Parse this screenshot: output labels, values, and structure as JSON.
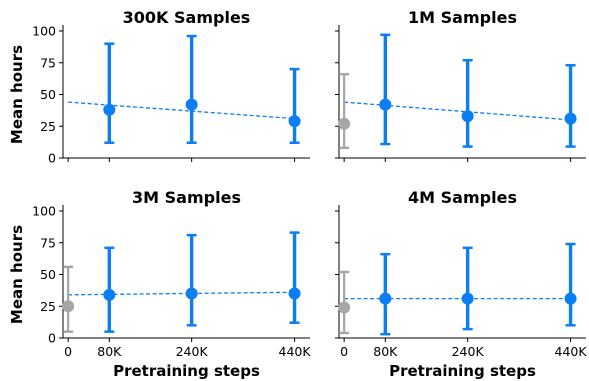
{
  "colors": {
    "main": "#0a7ef2",
    "baseline": "#a6a6a6"
  },
  "shared": {
    "ylabel": "Mean hours",
    "xlabel": "Pretraining steps",
    "x_ticks": [
      {
        "value": 0,
        "label": "0"
      },
      {
        "value": 80000,
        "label": "80K"
      },
      {
        "value": 240000,
        "label": "240K"
      },
      {
        "value": 440000,
        "label": "440K"
      }
    ],
    "y_ticks": [
      0,
      25,
      50,
      75,
      100
    ]
  },
  "chart_data": [
    {
      "type": "scatter",
      "title": "300K Samples",
      "xlim": [
        -10000,
        470000
      ],
      "ylim": [
        0,
        100
      ],
      "points": [
        {
          "x": 80000,
          "y": 38,
          "ylo": 12,
          "yhi": 90,
          "group": "main"
        },
        {
          "x": 240000,
          "y": 42,
          "ylo": 12,
          "yhi": 96,
          "group": "main"
        },
        {
          "x": 440000,
          "y": 29,
          "ylo": 12,
          "yhi": 70,
          "group": "main"
        }
      ],
      "trend": {
        "x0": 0,
        "y0": 44,
        "x1": 440000,
        "y1": 31
      }
    },
    {
      "type": "scatter",
      "title": "1M Samples",
      "xlim": [
        -10000,
        470000
      ],
      "ylim": [
        0,
        100
      ],
      "points": [
        {
          "x": 0,
          "y": 27,
          "ylo": 8,
          "yhi": 66,
          "group": "baseline"
        },
        {
          "x": 80000,
          "y": 42,
          "ylo": 11,
          "yhi": 97,
          "group": "main"
        },
        {
          "x": 240000,
          "y": 33,
          "ylo": 9,
          "yhi": 77,
          "group": "main"
        },
        {
          "x": 440000,
          "y": 31,
          "ylo": 9,
          "yhi": 73,
          "group": "main"
        }
      ],
      "trend": {
        "x0": 0,
        "y0": 44,
        "x1": 440000,
        "y1": 30
      }
    },
    {
      "type": "scatter",
      "title": "3M Samples",
      "xlim": [
        -10000,
        470000
      ],
      "ylim": [
        0,
        100
      ],
      "points": [
        {
          "x": 0,
          "y": 25,
          "ylo": 5,
          "yhi": 56,
          "group": "baseline"
        },
        {
          "x": 80000,
          "y": 34,
          "ylo": 5,
          "yhi": 71,
          "group": "main"
        },
        {
          "x": 240000,
          "y": 35,
          "ylo": 10,
          "yhi": 81,
          "group": "main"
        },
        {
          "x": 440000,
          "y": 35,
          "ylo": 12,
          "yhi": 83,
          "group": "main"
        }
      ],
      "trend": {
        "x0": 0,
        "y0": 34,
        "x1": 440000,
        "y1": 36
      }
    },
    {
      "type": "scatter",
      "title": "4M Samples",
      "xlim": [
        -10000,
        470000
      ],
      "ylim": [
        0,
        100
      ],
      "points": [
        {
          "x": 0,
          "y": 24,
          "ylo": 4,
          "yhi": 52,
          "group": "baseline"
        },
        {
          "x": 80000,
          "y": 31,
          "ylo": 3,
          "yhi": 66,
          "group": "main"
        },
        {
          "x": 240000,
          "y": 31,
          "ylo": 7,
          "yhi": 71,
          "group": "main"
        },
        {
          "x": 440000,
          "y": 31,
          "ylo": 10,
          "yhi": 74,
          "group": "main"
        }
      ],
      "trend": {
        "x0": 0,
        "y0": 31,
        "x1": 440000,
        "y1": 31
      }
    }
  ]
}
